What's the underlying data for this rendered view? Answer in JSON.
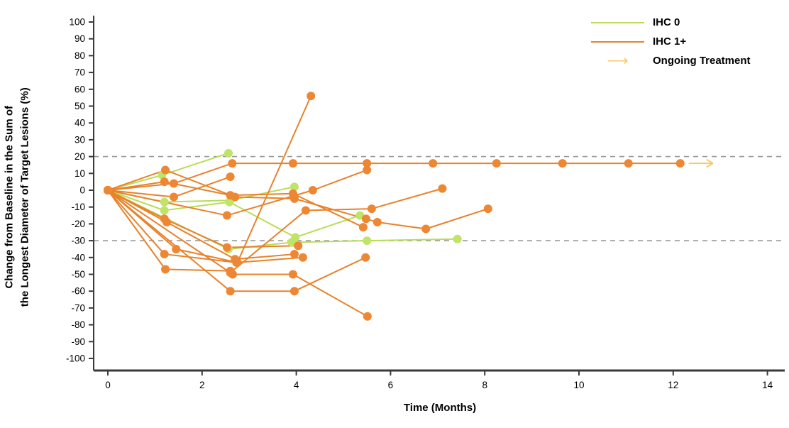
{
  "figure": {
    "kind": "tumor spider plot",
    "background": "#ffffff"
  },
  "chart_data": {
    "type": "line",
    "title": "",
    "xlabel": "Time (Months)",
    "ylabel_line1": "Change from Baseline in the Sum of",
    "ylabel_line2": "the Longest Diameter of Target Lesions (%)",
    "xlim": [
      0,
      14
    ],
    "ylim": [
      -100,
      100
    ],
    "x_ticks": [
      0,
      2,
      4,
      6,
      8,
      10,
      12,
      14
    ],
    "y_ticks": [
      100,
      90,
      80,
      70,
      60,
      50,
      40,
      30,
      20,
      10,
      0,
      -10,
      -20,
      -30,
      -40,
      -50,
      -60,
      -70,
      -80,
      -90,
      -100
    ],
    "reference_lines": [
      20,
      -30
    ],
    "grid": "off",
    "colors": {
      "ihc0_green": "#b8dd55",
      "ihc0_marker": "#c0e468",
      "ihc1_orange": "#e8822b",
      "ihc1_marker": "#ed8733",
      "ongoing_arrow": "#f8c96d",
      "reference_dash": "#9a9a9a",
      "axis": "#3a3a3a",
      "text": "#000000"
    },
    "legend": [
      {
        "label": "IHC 0",
        "type": "line",
        "color": "#b8dd55"
      },
      {
        "label": "IHC 1+",
        "type": "line",
        "color": "#e8822b"
      },
      {
        "label": "Ongoing Treatment",
        "type": "arrow",
        "color": "#f8c96d"
      }
    ],
    "legend_position": "top-right",
    "series": [
      {
        "name": "ihc0-patient-1",
        "group": "IHC 0",
        "color": "#b8dd55",
        "marker": "#c0e468",
        "ongoing": false,
        "points": [
          [
            0,
            0
          ],
          [
            1.15,
            9
          ],
          [
            2.56,
            22
          ]
        ]
      },
      {
        "name": "ihc0-patient-2",
        "group": "IHC 0",
        "color": "#b8dd55",
        "marker": "#c0e468",
        "ongoing": false,
        "points": [
          [
            0,
            0
          ],
          [
            1.2,
            -7
          ],
          [
            2.6,
            -6
          ],
          [
            3.96,
            2
          ]
        ]
      },
      {
        "name": "ihc0-patient-3",
        "group": "IHC 0",
        "color": "#b8dd55",
        "marker": "#c0e468",
        "ongoing": false,
        "points": [
          [
            0,
            0
          ],
          [
            1.2,
            -12
          ],
          [
            2.58,
            -7
          ],
          [
            3.98,
            -28
          ],
          [
            5.35,
            -15
          ]
        ]
      },
      {
        "name": "ihc0-patient-4",
        "group": "IHC 0",
        "color": "#b8dd55",
        "marker": "#c0e468",
        "ongoing": false,
        "points": [
          [
            0,
            0
          ],
          [
            2.56,
            -35
          ],
          [
            3.9,
            -31
          ],
          [
            5.5,
            -30
          ],
          [
            7.42,
            -29
          ]
        ]
      },
      {
        "name": "ihc1-patient-1",
        "group": "IHC 1+",
        "color": "#e8822b",
        "marker": "#ed8733",
        "ongoing": true,
        "points": [
          [
            0,
            0
          ],
          [
            1.4,
            4
          ],
          [
            2.64,
            16
          ],
          [
            3.93,
            16
          ],
          [
            5.5,
            16
          ],
          [
            6.9,
            16
          ],
          [
            8.25,
            16
          ],
          [
            9.65,
            16
          ],
          [
            11.05,
            16
          ],
          [
            12.15,
            16
          ]
        ]
      },
      {
        "name": "ihc1-patient-2",
        "group": "IHC 1+",
        "color": "#e8822b",
        "marker": "#ed8733",
        "ongoing": false,
        "points": [
          [
            0,
            0
          ],
          [
            1.22,
            12
          ],
          [
            2.7,
            -4
          ],
          [
            3.96,
            -5
          ],
          [
            5.48,
            -17
          ],
          [
            5.72,
            -19
          ],
          [
            6.75,
            -23
          ],
          [
            8.07,
            -11
          ]
        ]
      },
      {
        "name": "ihc1-patient-3",
        "group": "IHC 1+",
        "color": "#e8822b",
        "marker": "#ed8733",
        "ongoing": false,
        "points": [
          [
            0,
            0
          ],
          [
            1.2,
            5
          ],
          [
            2.6,
            -3
          ],
          [
            3.93,
            -2
          ],
          [
            5.42,
            -22
          ]
        ]
      },
      {
        "name": "ihc1-patient-4",
        "group": "IHC 1+",
        "color": "#e8822b",
        "marker": "#ed8733",
        "ongoing": false,
        "points": [
          [
            0,
            0
          ],
          [
            1.4,
            -4
          ],
          [
            2.6,
            8
          ]
        ]
      },
      {
        "name": "ihc1-patient-5",
        "group": "IHC 1+",
        "color": "#e8822b",
        "marker": "#ed8733",
        "ongoing": false,
        "points": [
          [
            0,
            0
          ],
          [
            2.53,
            -15
          ],
          [
            4.35,
            0
          ],
          [
            5.5,
            12
          ]
        ]
      },
      {
        "name": "ihc1-patient-6",
        "group": "IHC 1+",
        "color": "#e8822b",
        "marker": "#ed8733",
        "ongoing": false,
        "points": [
          [
            0,
            0
          ],
          [
            1.2,
            -17
          ],
          [
            2.53,
            -34
          ],
          [
            4.04,
            -33
          ]
        ]
      },
      {
        "name": "ihc1-patient-7",
        "group": "IHC 1+",
        "color": "#e8822b",
        "marker": "#ed8733",
        "ongoing": false,
        "points": [
          [
            0,
            0
          ],
          [
            1.25,
            -19
          ],
          [
            2.7,
            -41
          ],
          [
            3.96,
            -38
          ]
        ]
      },
      {
        "name": "ihc1-patient-8",
        "group": "IHC 1+",
        "color": "#e8822b",
        "marker": "#ed8733",
        "ongoing": false,
        "points": [
          [
            0,
            0
          ],
          [
            1.2,
            -38
          ],
          [
            2.73,
            -43
          ],
          [
            4.14,
            -40
          ]
        ]
      },
      {
        "name": "ihc1-patient-9",
        "group": "IHC 1+",
        "color": "#e8822b",
        "marker": "#ed8733",
        "ongoing": false,
        "points": [
          [
            0,
            0
          ],
          [
            1.22,
            -47
          ],
          [
            2.6,
            -48
          ],
          [
            2.65,
            -50
          ],
          [
            3.93,
            -50
          ],
          [
            5.51,
            -75
          ]
        ]
      },
      {
        "name": "ihc1-patient-10",
        "group": "IHC 1+",
        "color": "#e8822b",
        "marker": "#ed8733",
        "ongoing": false,
        "points": [
          [
            0,
            0
          ],
          [
            2.6,
            -60
          ],
          [
            3.96,
            -60
          ],
          [
            5.47,
            -40
          ]
        ]
      },
      {
        "name": "ihc1-patient-11",
        "group": "IHC 1+",
        "color": "#e8822b",
        "marker": "#ed8733",
        "ongoing": false,
        "points": [
          [
            0,
            0
          ],
          [
            1.45,
            -35
          ],
          [
            2.75,
            -43
          ],
          [
            4.31,
            56
          ]
        ]
      },
      {
        "name": "ihc1-patient-12",
        "group": "IHC 1+",
        "color": "#e8822b",
        "marker": "#ed8733",
        "ongoing": false,
        "points": [
          [
            0,
            0
          ],
          [
            2.6,
            -49
          ],
          [
            4.2,
            -12
          ],
          [
            5.6,
            -11
          ],
          [
            7.1,
            1
          ]
        ]
      }
    ]
  }
}
